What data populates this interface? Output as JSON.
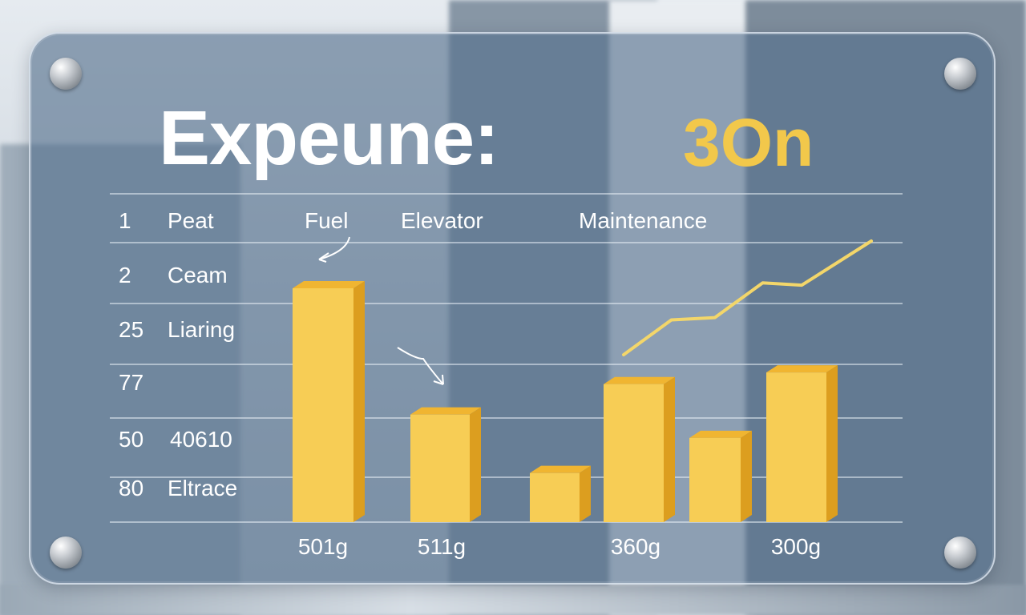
{
  "title": "Expeune:",
  "total": "3On",
  "colors": {
    "bar": "#f7cd55",
    "bar_top": "#f0b531",
    "bar_side": "#dc9e1f",
    "line": "#f3d66a",
    "panel": "#54708c",
    "text": "#ffffff"
  },
  "row_numbers": [
    "1",
    "2",
    "25",
    "77",
    "50",
    "80"
  ],
  "row_labels": [
    "Peat",
    "Ceam",
    "Liaring",
    "",
    "40610",
    "Eltrace"
  ],
  "column_headers": [
    "Fuel",
    "Elevator",
    "Maintenance"
  ],
  "chart_data": {
    "type": "bar",
    "categories": [
      "",
      "",
      "",
      "",
      "",
      ""
    ],
    "values": [
      100,
      46,
      21,
      59,
      36,
      64
    ],
    "value_labels": [
      "501g",
      "511g",
      "",
      "360g",
      "",
      "300g"
    ],
    "ylim": [
      0,
      105
    ],
    "grid": true,
    "trend_line": {
      "type": "line",
      "values": [
        70,
        85,
        86,
        101,
        100,
        119
      ],
      "x_positions": [
        3.0,
        3.55,
        4.05,
        4.6,
        5.05,
        5.85
      ]
    }
  }
}
